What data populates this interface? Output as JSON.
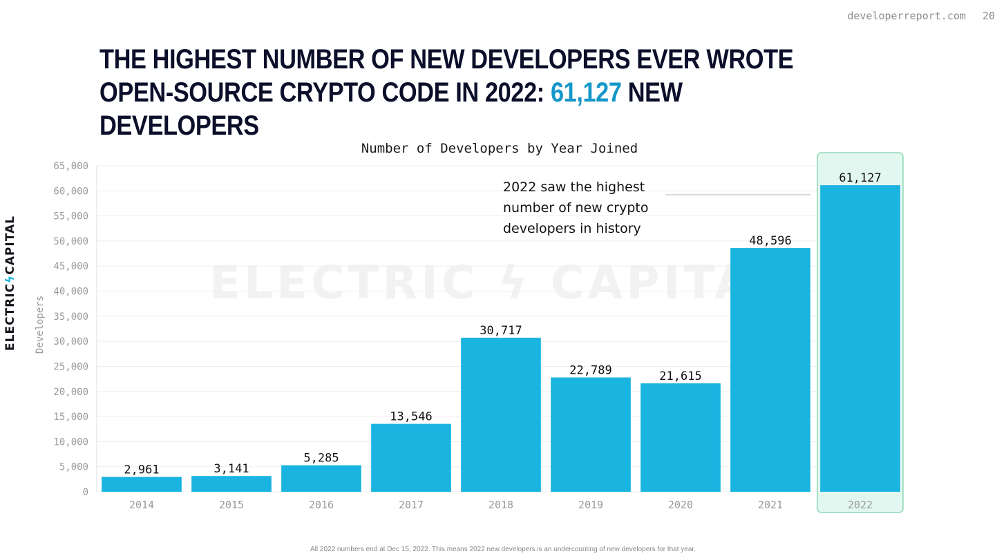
{
  "header": {
    "site": "developerreport.com",
    "page_number": "20"
  },
  "headline": {
    "part1": "THE HIGHEST NUMBER OF NEW DEVELOPERS EVER WROTE OPEN-SOURCE CRYPTO CODE IN 2022: ",
    "highlight": "61,127",
    "part2": " NEW DEVELOPERS",
    "highlight_color": "#1597c9"
  },
  "brand": {
    "left": "ELECTRIC",
    "bolt": "ϟ",
    "right": "CAPITAL"
  },
  "watermark": "ELECTRIC ϟ CAPITAL",
  "footnote": "All 2022 numbers end at Dec 15, 2022. This means 2022 new developers is an undercounting of new developers for that year.",
  "chart_data": {
    "type": "bar",
    "title": "Number of Developers by Year Joined",
    "ylabel": "Developers",
    "xlabel": "",
    "categories": [
      "2014",
      "2015",
      "2016",
      "2017",
      "2018",
      "2019",
      "2020",
      "2021",
      "2022"
    ],
    "values": [
      2961,
      3141,
      5285,
      13546,
      30717,
      22789,
      21615,
      48596,
      61127
    ],
    "data_labels": [
      "2,961",
      "3,141",
      "5,285",
      "13,546",
      "30,717",
      "22,789",
      "21,615",
      "48,596",
      "61,127"
    ],
    "ylim": [
      0,
      65000
    ],
    "yticks": [
      0,
      5000,
      10000,
      15000,
      20000,
      25000,
      30000,
      35000,
      40000,
      45000,
      50000,
      55000,
      60000,
      65000
    ],
    "ytick_labels": [
      "0",
      "5,000",
      "10,000",
      "15,000",
      "20,000",
      "25,000",
      "30,000",
      "35,000",
      "40,000",
      "45,000",
      "50,000",
      "55,000",
      "60,000",
      "65,000"
    ],
    "grid": true,
    "bar_color": "#1ab4e0",
    "highlighted_category": "2022",
    "highlight_fill": "#e3f7f1",
    "highlight_stroke": "#8fd9b6",
    "annotation": {
      "lines": [
        "2022 saw the highest",
        "number of new crypto",
        "developers in history"
      ],
      "target_category": "2022"
    }
  }
}
